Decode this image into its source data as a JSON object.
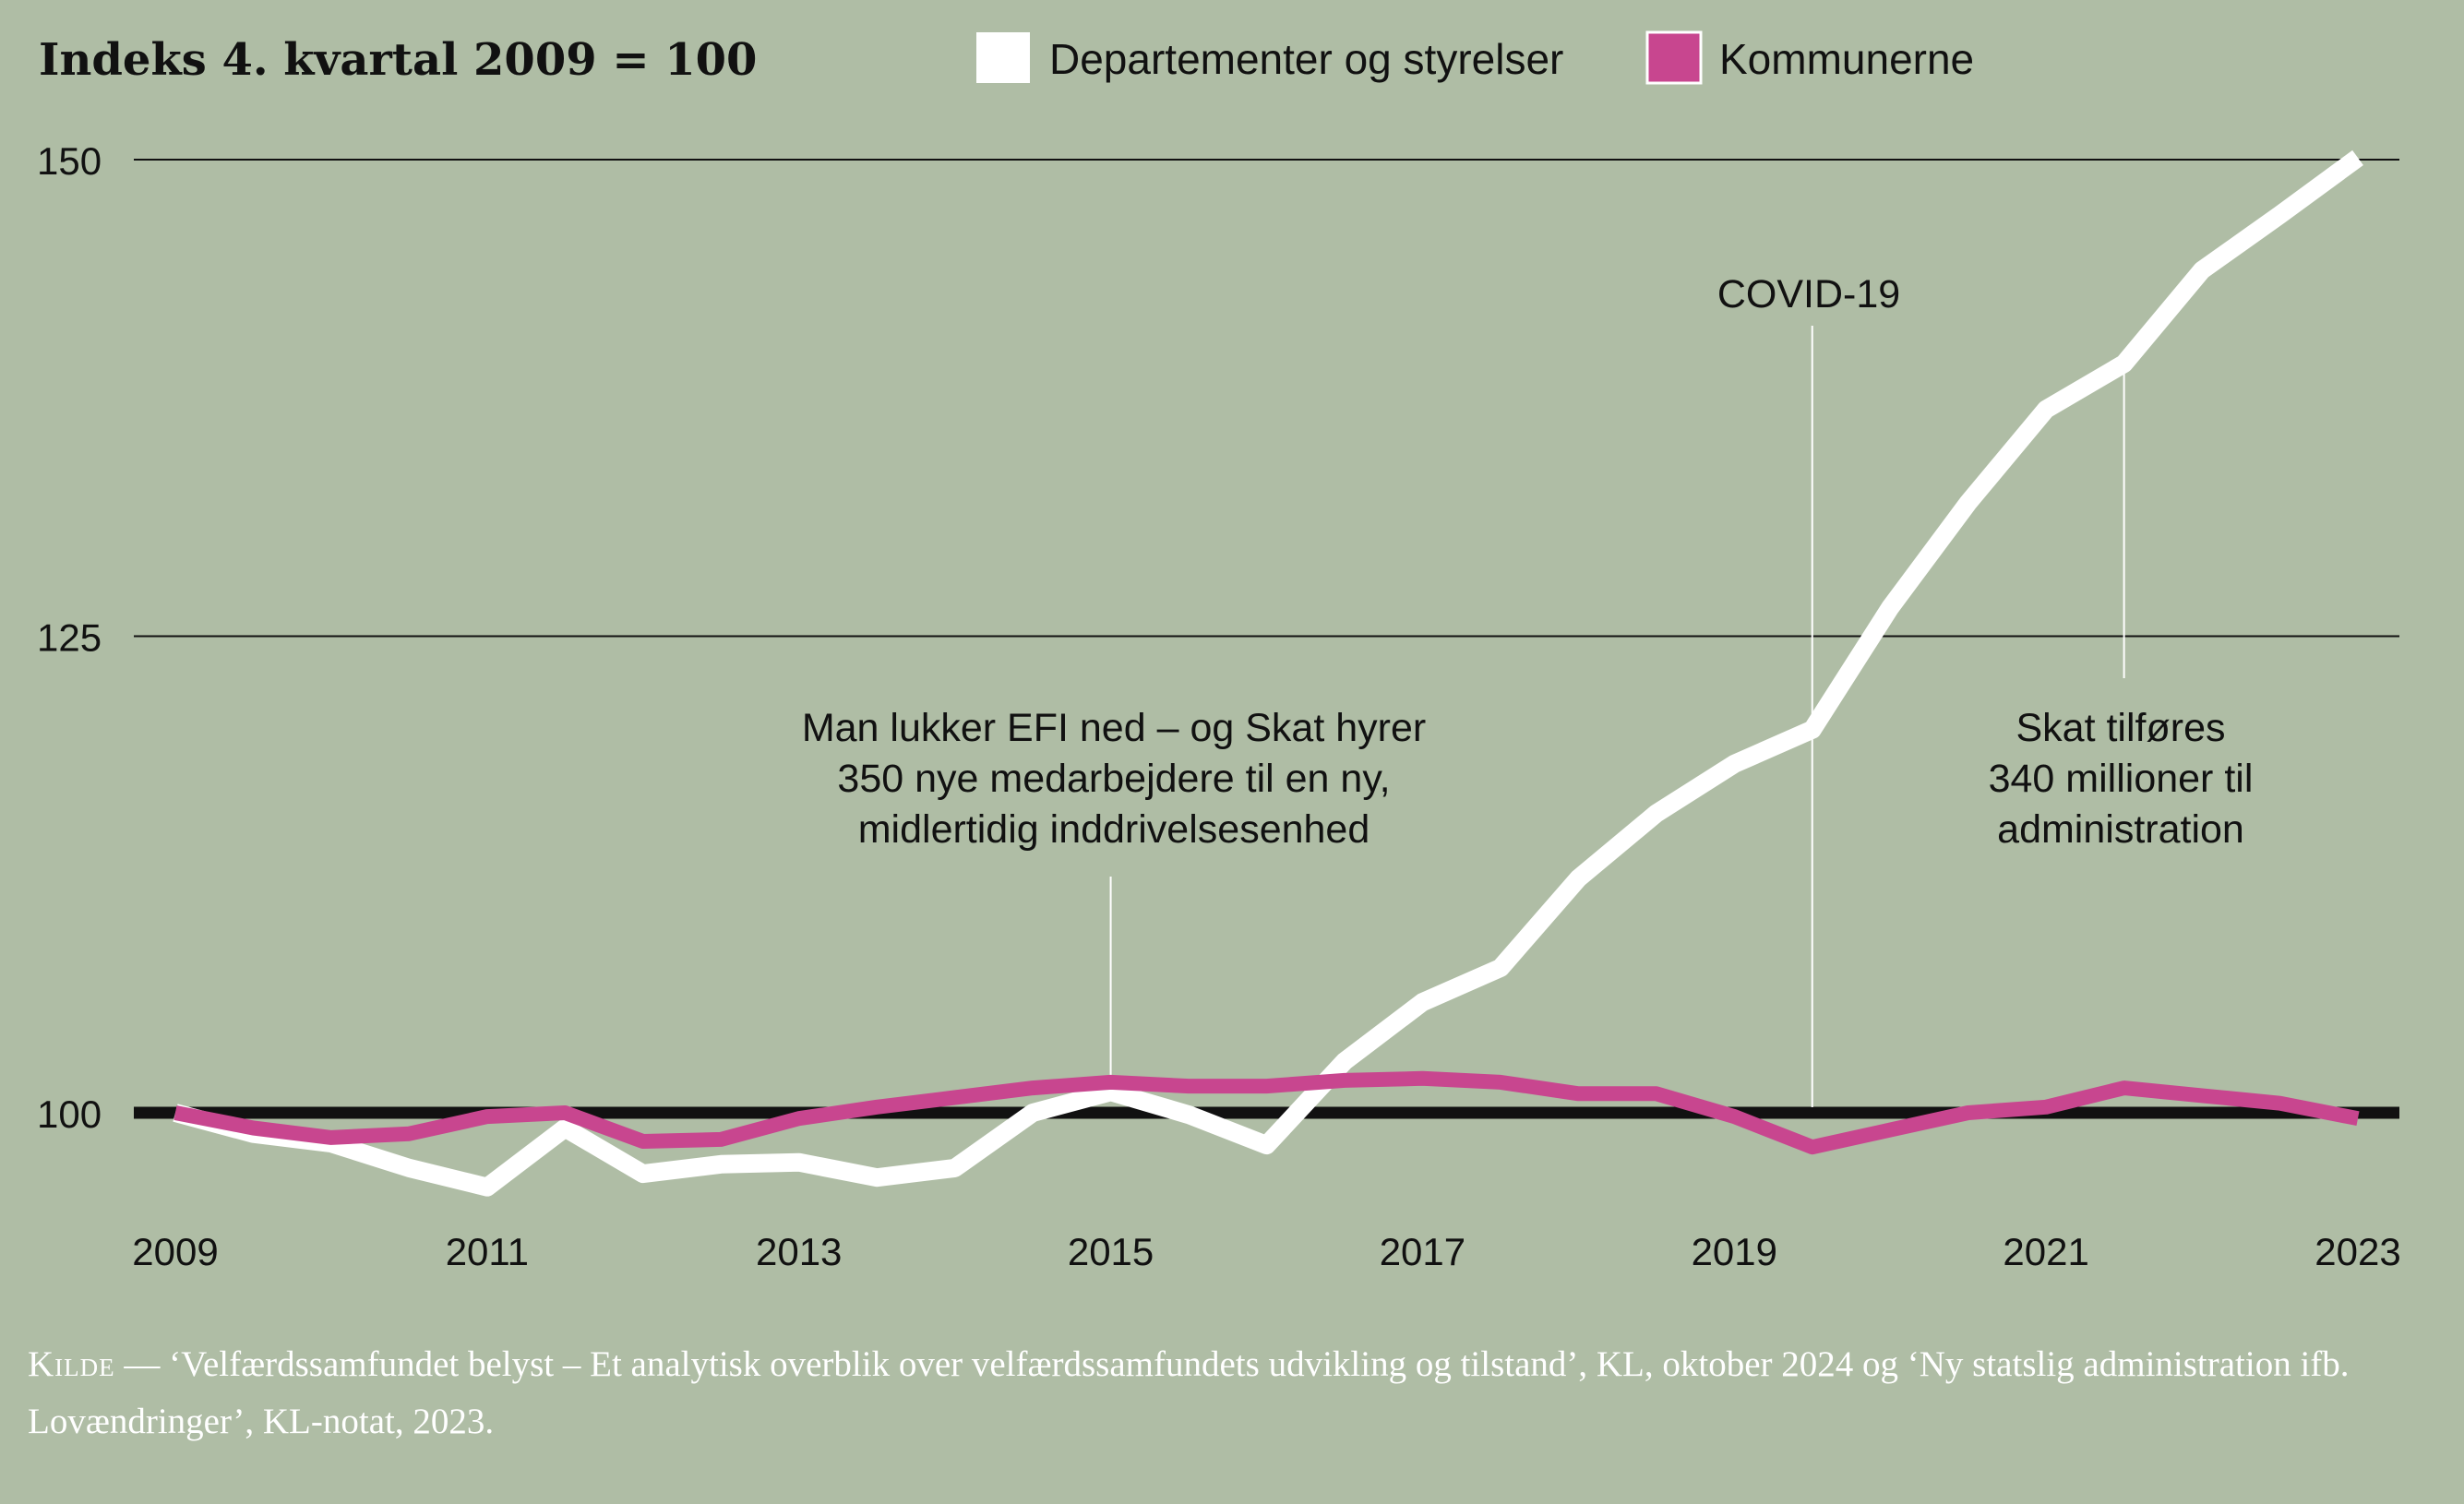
{
  "colors": {
    "background": "#afbda5",
    "series_dept": "#ffffff",
    "series_kom": "#c8468f",
    "axis": "#111111",
    "annotation_line": "#ffffff"
  },
  "chart_data": {
    "type": "line",
    "title": "Indeks 4. kvartal 2009 = 100",
    "xlabel": "",
    "ylabel": "",
    "x_ticks": [
      "2009",
      "2011",
      "2013",
      "2015",
      "2017",
      "2019",
      "2021",
      "2023"
    ],
    "y_ticks": [
      "150",
      "125",
      "100"
    ],
    "xlim": [
      2009.0,
      2023.0
    ],
    "ylim": [
      95,
      150
    ],
    "legend_position": "top",
    "grid": true,
    "series": [
      {
        "name": "Departementer og styrelser",
        "color": "#ffffff",
        "x": [
          2009.0,
          2009.5,
          2010.0,
          2010.5,
          2011.0,
          2011.5,
          2012.0,
          2012.5,
          2013.0,
          2013.5,
          2014.0,
          2014.5,
          2015.0,
          2015.5,
          2016.0,
          2016.5,
          2017.0,
          2017.5,
          2018.0,
          2018.5,
          2019.0,
          2019.5,
          2020.0,
          2020.5,
          2021.0,
          2021.5,
          2022.0,
          2022.5,
          2023.0
        ],
        "values": [
          100.0,
          98.9,
          98.4,
          97.1,
          96.1,
          99.2,
          96.8,
          97.3,
          97.4,
          96.6,
          97.1,
          100.0,
          101.1,
          99.9,
          98.3,
          102.7,
          105.8,
          107.6,
          112.3,
          115.7,
          118.3,
          120.1,
          126.5,
          132.0,
          136.9,
          139.3,
          144.2,
          147.1,
          150.1
        ]
      },
      {
        "name": "Kommunerne",
        "color": "#c8468f",
        "x": [
          2009.0,
          2009.5,
          2010.0,
          2010.5,
          2011.0,
          2011.5,
          2012.0,
          2012.5,
          2013.0,
          2013.5,
          2014.0,
          2014.5,
          2015.0,
          2015.5,
          2016.0,
          2016.5,
          2017.0,
          2017.5,
          2018.0,
          2018.5,
          2019.0,
          2019.5,
          2020.0,
          2020.5,
          2021.0,
          2021.5,
          2022.0,
          2022.5,
          2023.0
        ],
        "values": [
          100.0,
          99.2,
          98.7,
          98.9,
          99.8,
          100.0,
          98.5,
          98.6,
          99.7,
          100.3,
          100.8,
          101.3,
          101.6,
          101.4,
          101.4,
          101.7,
          101.8,
          101.6,
          101.0,
          101.0,
          99.8,
          98.2,
          99.1,
          100.0,
          100.3,
          101.3,
          100.9,
          100.5,
          99.7
        ]
      }
    ],
    "annotations": [
      {
        "lines": [
          "Man lukker EFI ned – og Skat hyrer",
          "350 nye medarbejdere til en ny,",
          "midlertidig inddrivelsesenhed"
        ],
        "x": 2015.0
      },
      {
        "lines": [
          "COVID-19"
        ],
        "x": 2019.5
      },
      {
        "lines": [
          "Skat tilføres",
          "340 millioner til",
          "administration"
        ],
        "x": 2021.5
      }
    ]
  },
  "source": {
    "label": "Kilde",
    "dash": " — ",
    "title1": "‘Velfærdssamfundet belyst – Et analytisk overblik over velfærdssamfundets udvikling og tilstand’",
    "rest1": ", KL, oktober 2024 og ",
    "title2": "‘Ny statslig administration ifb. Lovændringer’",
    "rest2": ", KL-notat, 2023."
  }
}
